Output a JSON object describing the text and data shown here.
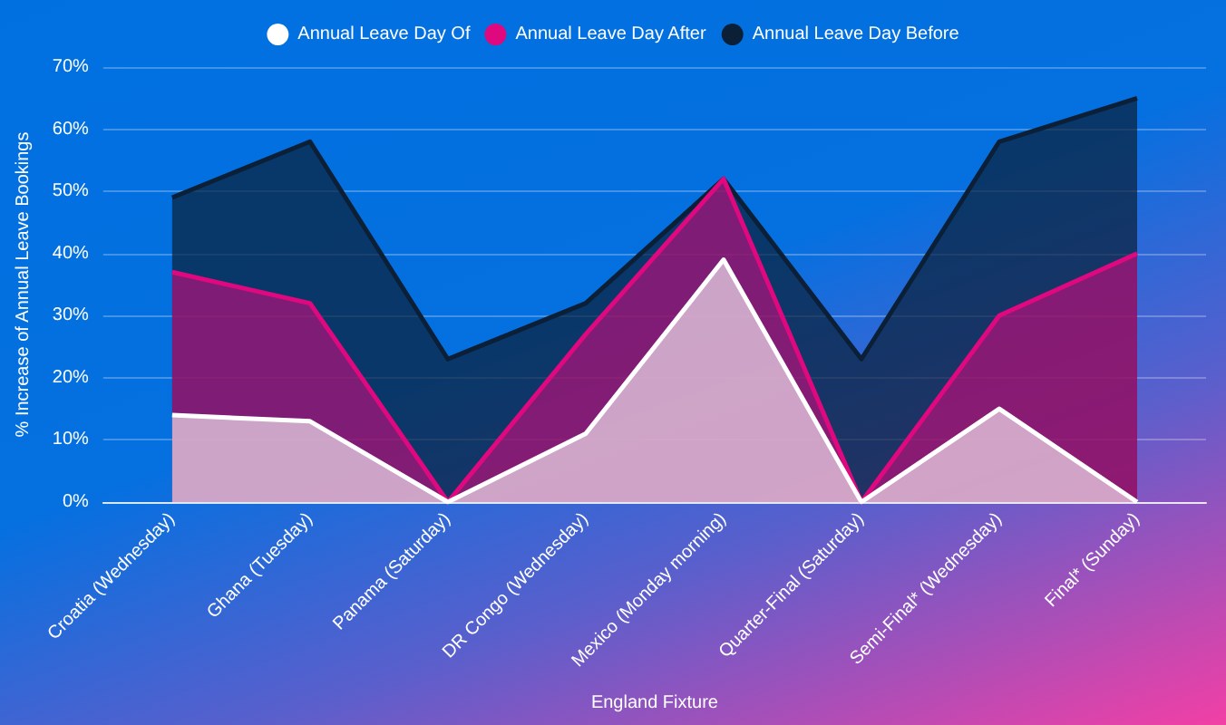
{
  "chart_data": {
    "type": "area",
    "xlabel": "England Fixture",
    "ylabel": "% Increase of Annual Leave Bookings",
    "categories": [
      "Croatia (Wednesday)",
      "Ghana (Tuesday)",
      "Panama (Saturday)",
      "DR Congo (Wednesday)",
      "Mexico (Monday morning)",
      "Quarter-Final (Saturday)",
      "Semi-Final* (Wednesday)",
      "Final* (Sunday)"
    ],
    "series": [
      {
        "name": "Annual Leave Day Of",
        "color": "#ffffff",
        "values": [
          14,
          13,
          0,
          11,
          39,
          0,
          15,
          0
        ]
      },
      {
        "name": "Annual Leave Day After",
        "color": "#e0087f",
        "values": [
          37,
          32,
          0,
          27,
          52,
          0,
          30,
          40
        ]
      },
      {
        "name": "Annual Leave Day Before",
        "color": "#0b2037",
        "values": [
          49,
          58,
          23,
          32,
          52,
          23,
          58,
          65
        ]
      }
    ],
    "ylim": [
      0,
      70
    ],
    "yticks": [
      {
        "value": 0,
        "label": "0%"
      },
      {
        "value": 10,
        "label": "10%"
      },
      {
        "value": 20,
        "label": "20%"
      },
      {
        "value": 30,
        "label": "30%"
      },
      {
        "value": 40,
        "label": "40%"
      },
      {
        "value": 50,
        "label": "50%"
      },
      {
        "value": 60,
        "label": "60%"
      },
      {
        "value": 70,
        "label": "70%"
      }
    ],
    "grid": "y",
    "legend": "top",
    "marker": "none",
    "line_style": "solid"
  }
}
